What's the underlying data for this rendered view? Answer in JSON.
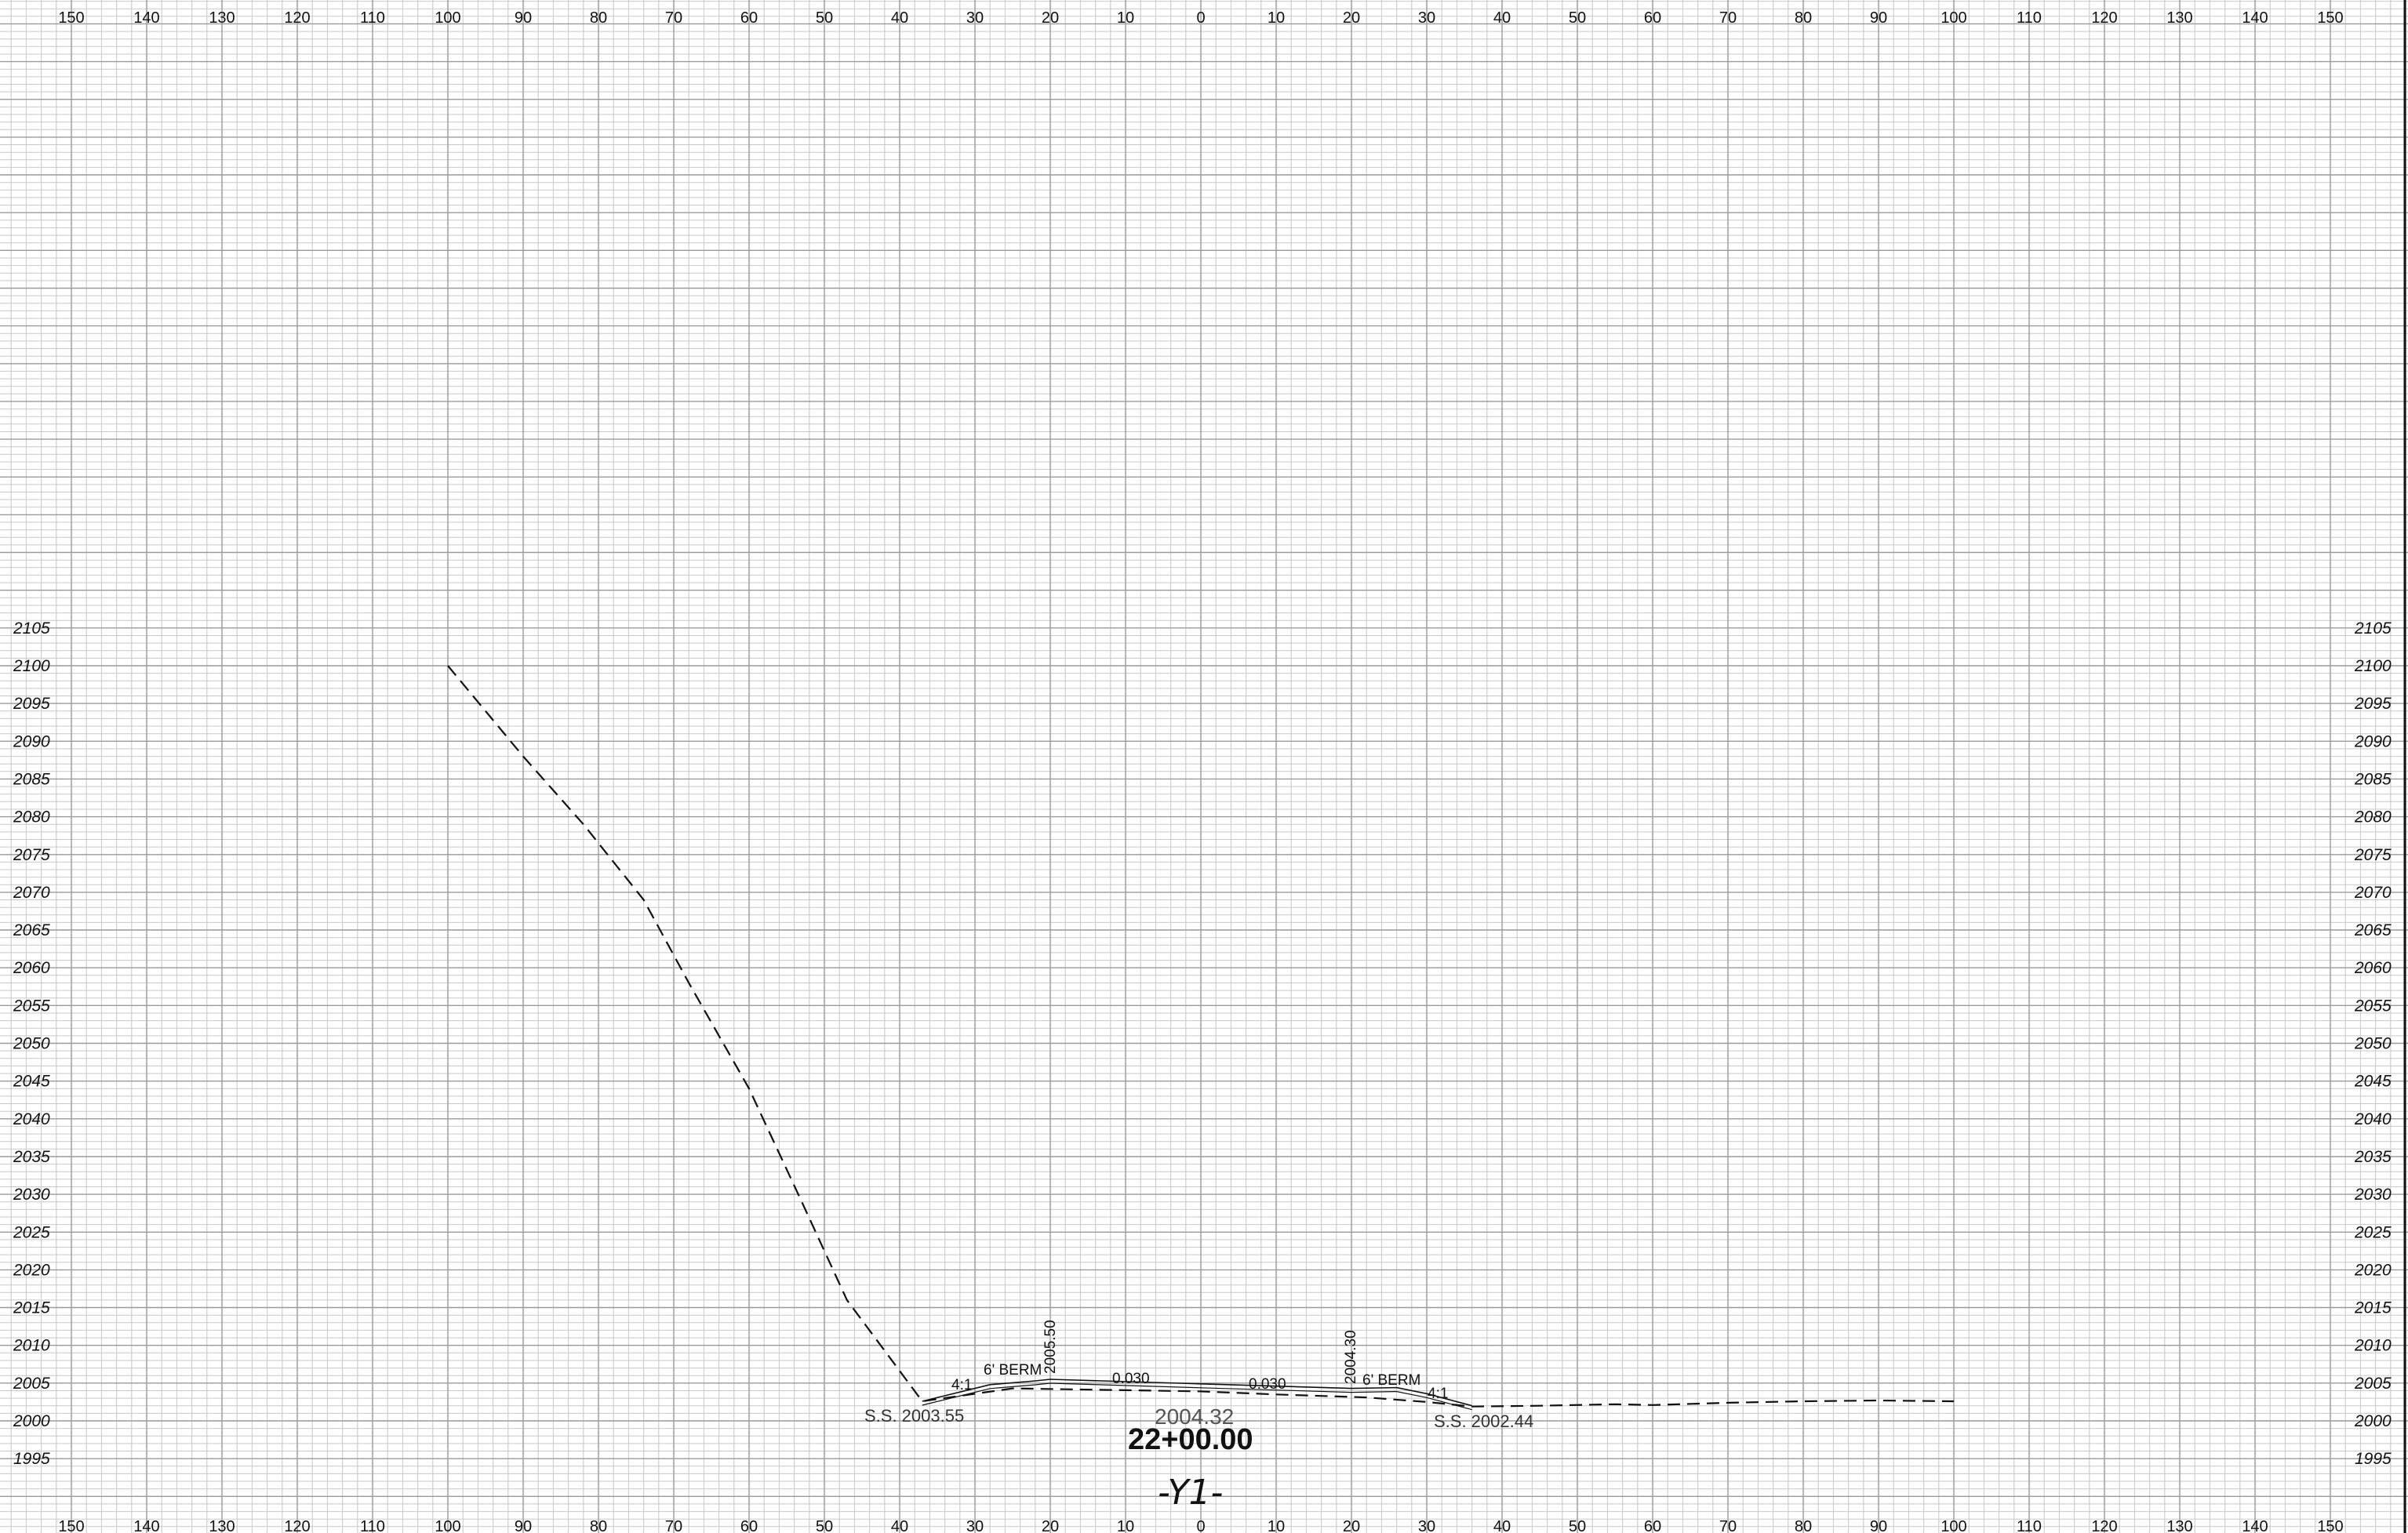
{
  "sheet": {
    "offset_ticks": [
      "150",
      "140",
      "130",
      "120",
      "110",
      "100",
      "90",
      "80",
      "70",
      "60",
      "50",
      "40",
      "30",
      "20",
      "10",
      "0",
      "10",
      "20",
      "30",
      "40",
      "50",
      "60",
      "70",
      "80",
      "90",
      "100",
      "110",
      "120",
      "130",
      "140",
      "150"
    ],
    "elevation_ticks": [
      "2105",
      "2100",
      "2095",
      "2090",
      "2085",
      "2080",
      "2075",
      "2070",
      "2065",
      "2060",
      "2055",
      "2050",
      "2045",
      "2040",
      "2035",
      "2030",
      "2025",
      "2020",
      "2015",
      "2010",
      "2005",
      "2000",
      "1995"
    ]
  },
  "chart_data": {
    "type": "line",
    "x_range": [
      -150,
      150
    ],
    "y_range": [
      1993,
      2105
    ],
    "grid": true,
    "existing_ground": [
      [
        -100,
        2100
      ],
      [
        -90,
        2088
      ],
      [
        -82,
        2079
      ],
      [
        -74,
        2069
      ],
      [
        -68,
        2058
      ],
      [
        -60,
        2044
      ],
      [
        -53,
        2029
      ],
      [
        -47,
        2016
      ],
      [
        -37,
        2002.6
      ],
      [
        -25,
        2004.3
      ],
      [
        0,
        2003.9
      ],
      [
        10,
        2003.5
      ],
      [
        22,
        2003.1
      ],
      [
        30,
        2002.5
      ],
      [
        36,
        2001.9
      ],
      [
        45,
        2002.0
      ],
      [
        55,
        2002.2
      ],
      [
        60,
        2002.1
      ],
      [
        70,
        2002.4
      ],
      [
        80,
        2002.6
      ],
      [
        90,
        2002.7
      ],
      [
        100,
        2002.6
      ]
    ],
    "proposed_section": [
      [
        -37,
        2002.6
      ],
      [
        -28,
        2004.8
      ],
      [
        -22,
        2005.3
      ],
      [
        -20,
        2005.5
      ],
      [
        0,
        2004.9
      ],
      [
        10,
        2004.6
      ],
      [
        20,
        2004.3
      ],
      [
        26,
        2004.4
      ],
      [
        30,
        2003.6
      ],
      [
        36,
        2002.0
      ]
    ],
    "labels": {
      "left_slope": "4:1",
      "left_berm": "6' BERM",
      "left_berm_elev": "2005.50",
      "left_grade": "0.030",
      "right_grade": "0.030",
      "right_berm_elev": "2004.30",
      "right_berm": "6' BERM",
      "right_slope": "4:1",
      "left_slope_stake": "S.S. 2003.55",
      "right_slope_stake": "S.S. 2002.44",
      "centerline_grade": "2004.32",
      "station": "22+00.00",
      "alignment": "-Y1-"
    }
  }
}
